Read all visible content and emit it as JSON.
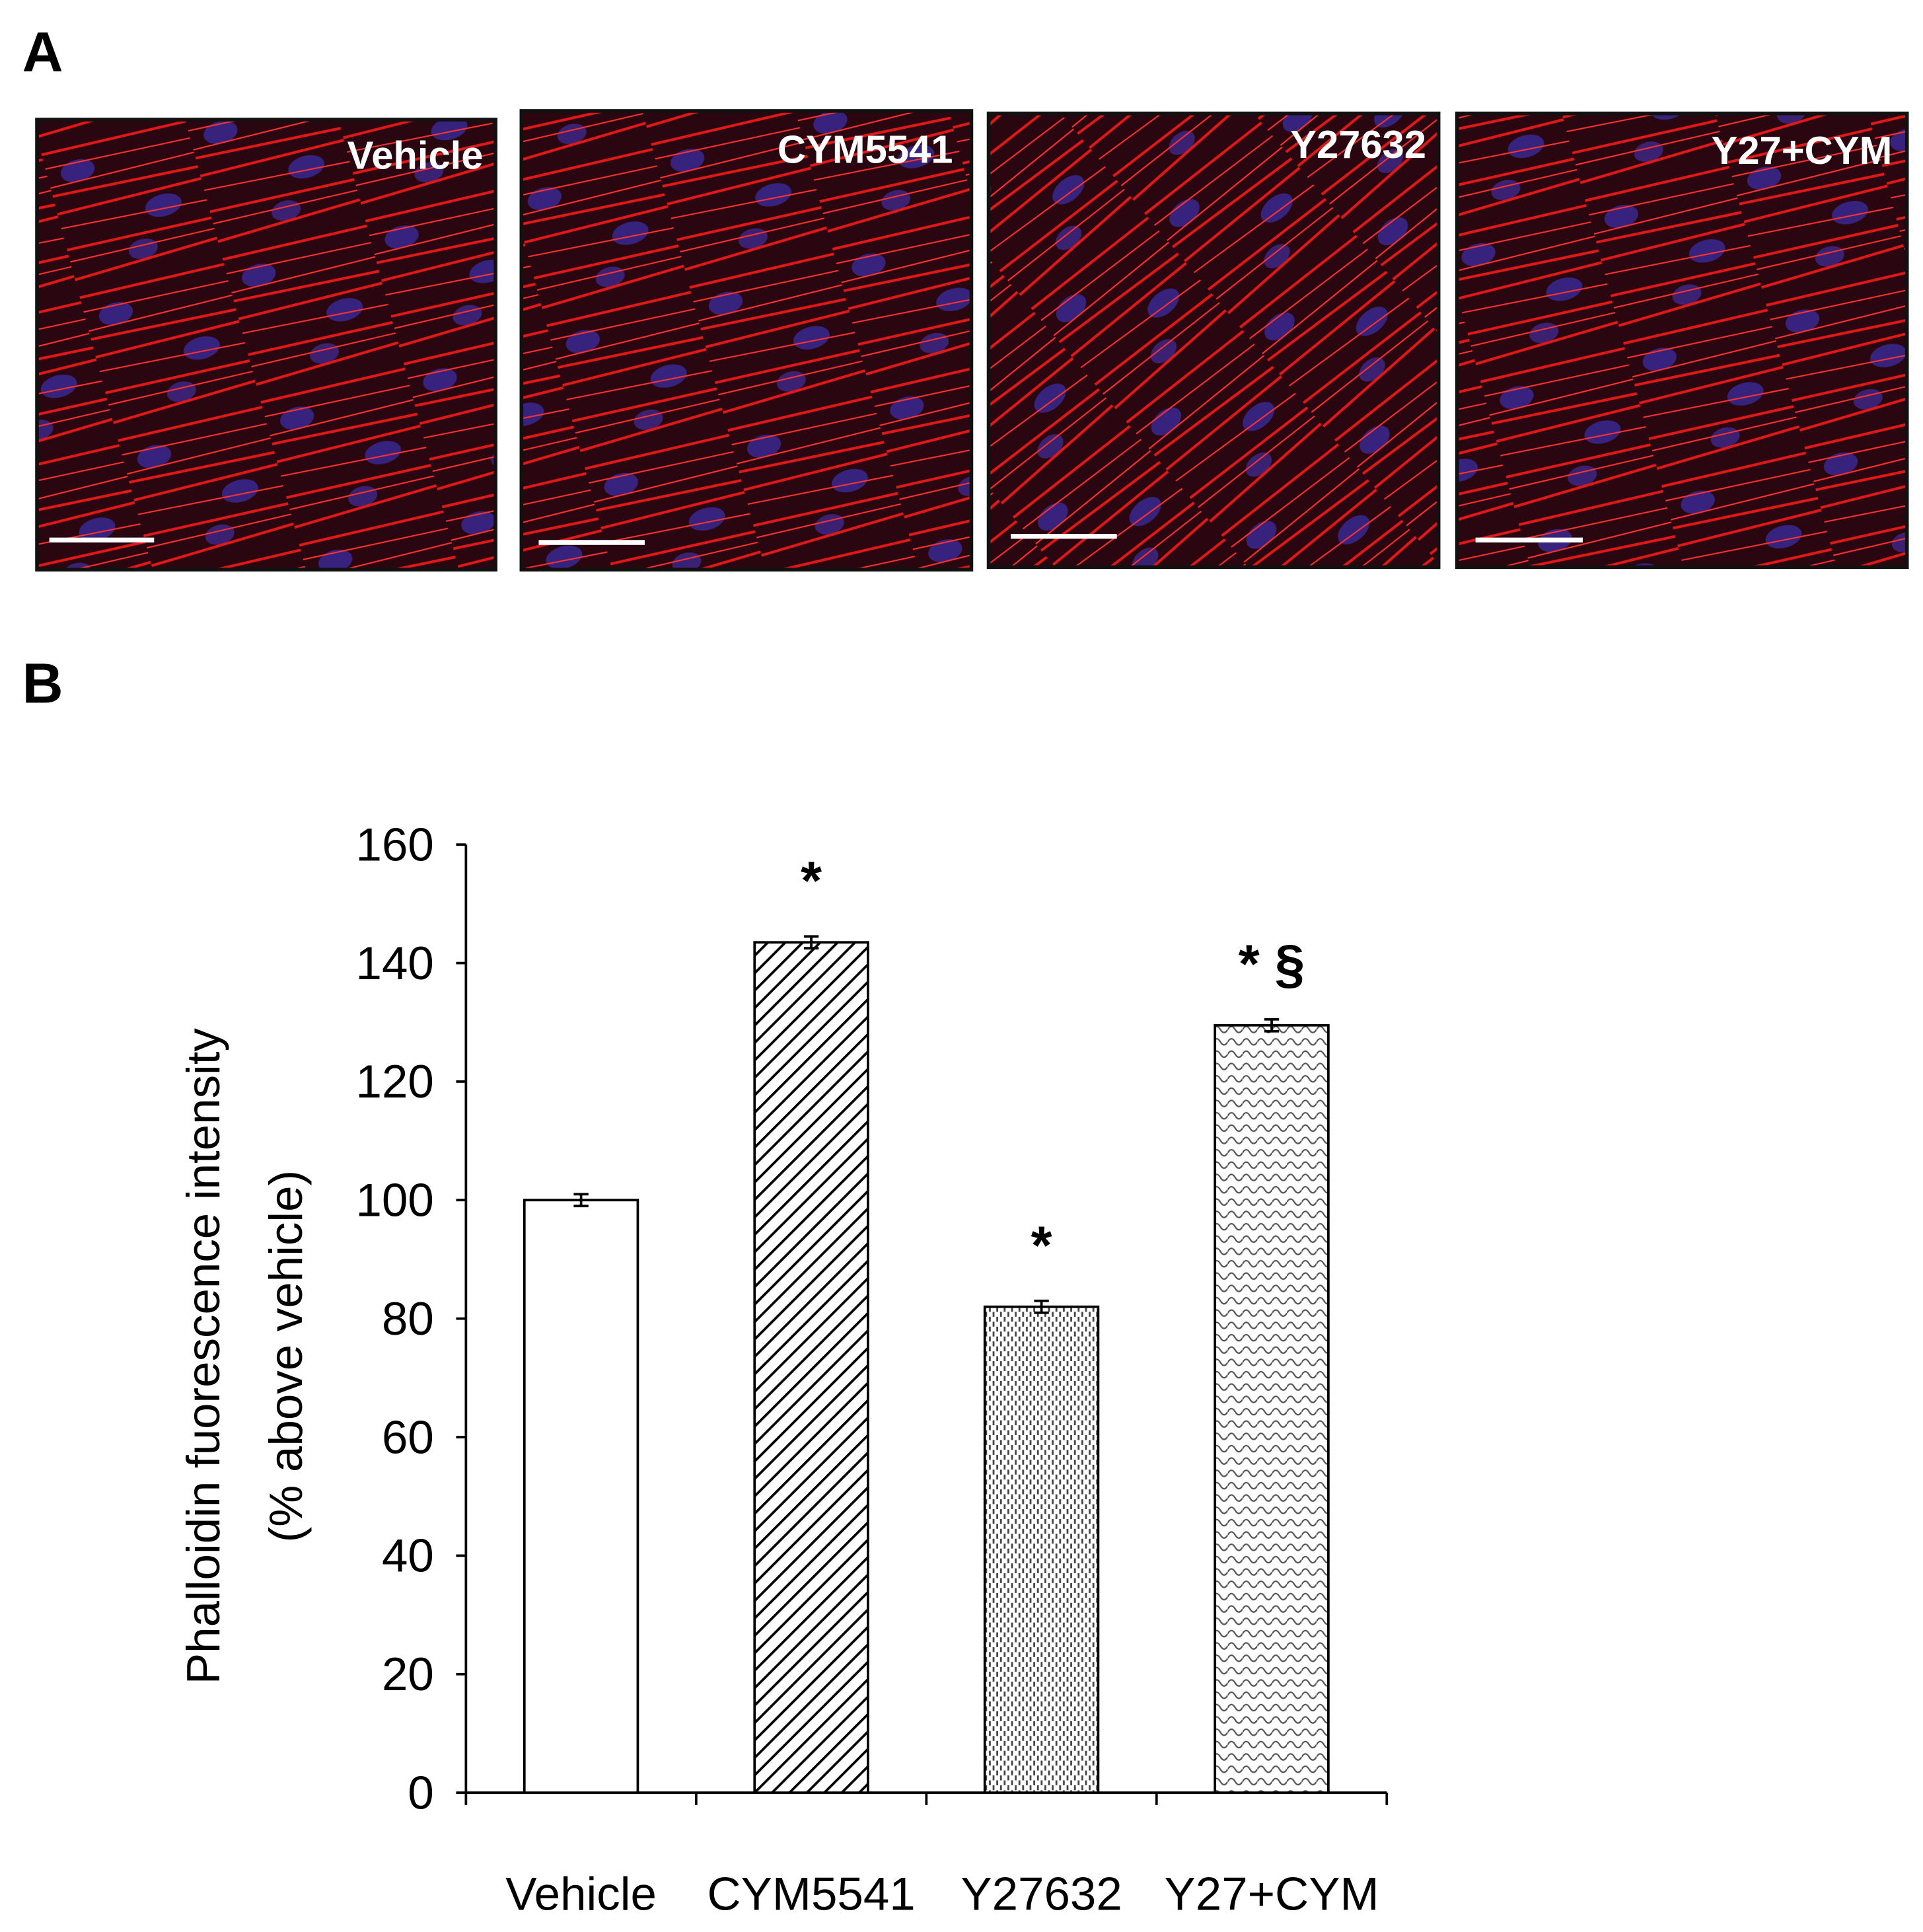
{
  "panel_labels": [
    "A",
    "B"
  ],
  "panel_a": {
    "images": [
      {
        "label": "Vehicle"
      },
      {
        "label": "CYM5541"
      },
      {
        "label": "Y27632"
      },
      {
        "label": "Y27+CYM"
      }
    ]
  },
  "chart_data": {
    "type": "bar",
    "y_label_lines": [
      "Phalloidin fuorescence intensity",
      "(% above vehicle)"
    ],
    "categories": [
      "Vehicle",
      "CYM5541",
      "Y27632",
      "Y27+CYM"
    ],
    "values": [
      100,
      143.5,
      82,
      129.5
    ],
    "errors": [
      1,
      1,
      1,
      1
    ],
    "hatches": [
      "none",
      "diagonal",
      "dots",
      "waves"
    ],
    "color": "#000000",
    "ylim": [
      0,
      160
    ],
    "yticks": [
      0,
      20,
      40,
      60,
      80,
      100,
      120,
      140,
      160
    ],
    "annotations": [
      {
        "text": "*",
        "category": "CYM5541"
      },
      {
        "text": "*",
        "category": "Y27632"
      },
      {
        "text": "* §",
        "category": "Y27+CYM"
      }
    ]
  }
}
